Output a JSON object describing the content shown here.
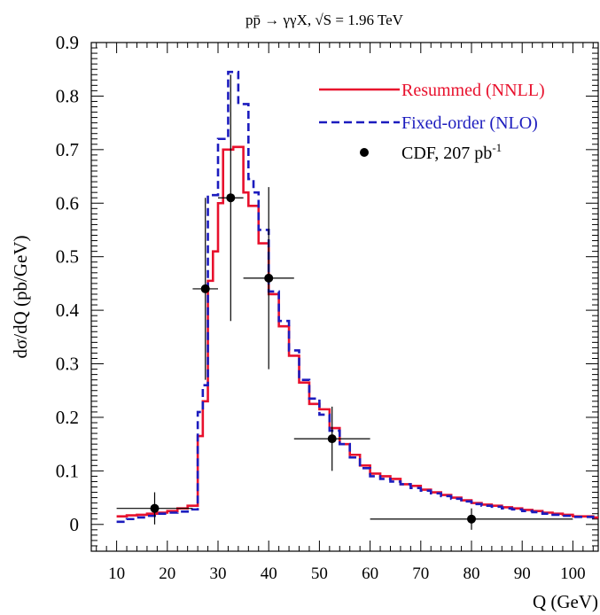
{
  "chart_data": {
    "type": "line",
    "title": "pp̄ → γγX, √S = 1.96 TeV",
    "xlabel": "Q (GeV)",
    "ylabel": "dσ/dQ (pb/GeV)",
    "xlim": [
      5,
      105
    ],
    "ylim": [
      -0.05,
      0.9
    ],
    "xticks": [
      10,
      20,
      30,
      40,
      50,
      60,
      70,
      80,
      90,
      100
    ],
    "xtick_labels": [
      "10",
      "20",
      "30",
      "40",
      "50",
      "60",
      "70",
      "80",
      "90",
      "100"
    ],
    "yticks": [
      0,
      0.1,
      0.2,
      0.3,
      0.4,
      0.5,
      0.6,
      0.7,
      0.8,
      0.9
    ],
    "ytick_labels": [
      "0",
      "0.1",
      "0.2",
      "0.3",
      "0.4",
      "0.5",
      "0.6",
      "0.7",
      "0.8",
      "0.9"
    ],
    "grid": false,
    "legend_position": "top-right",
    "bin_edges": [
      10,
      12,
      14,
      16,
      18,
      20,
      22,
      24,
      26,
      27,
      28,
      29,
      30,
      31,
      32,
      33,
      34,
      35,
      36,
      37,
      38,
      39,
      40,
      41,
      42,
      43,
      44,
      45,
      46,
      47,
      48,
      49,
      50,
      51,
      52,
      53,
      54,
      55,
      56,
      57,
      58,
      59,
      60,
      62,
      64,
      66,
      68,
      70,
      72,
      74,
      76,
      78,
      80,
      82,
      84,
      86,
      88,
      90,
      92,
      94,
      96,
      98,
      100,
      102,
      104,
      105
    ],
    "series": [
      {
        "name": "Resummed (NNLL)",
        "color": "#e8112d",
        "style": "solid",
        "values": [
          0.015,
          0.017,
          0.018,
          0.02,
          0.022,
          0.025,
          0.03,
          0.035,
          0.165,
          0.23,
          0.455,
          0.51,
          0.6,
          0.7,
          0.7,
          0.705,
          0.705,
          0.62,
          0.595,
          0.595,
          0.525,
          0.525,
          0.43,
          0.43,
          0.37,
          0.37,
          0.315,
          0.315,
          0.265,
          0.265,
          0.225,
          0.225,
          0.215,
          0.215,
          0.18,
          0.18,
          0.15,
          0.15,
          0.13,
          0.13,
          0.11,
          0.11,
          0.095,
          0.09,
          0.085,
          0.075,
          0.072,
          0.065,
          0.06,
          0.055,
          0.05,
          0.045,
          0.04,
          0.037,
          0.035,
          0.032,
          0.03,
          0.027,
          0.025,
          0.022,
          0.02,
          0.018,
          0.015,
          0.015,
          0.013
        ]
      },
      {
        "name": "Fixed-order (NLO)",
        "color": "#1c1cbe",
        "style": "dashed",
        "values": [
          0.005,
          0.01,
          0.013,
          0.016,
          0.02,
          0.022,
          0.024,
          0.028,
          0.21,
          0.26,
          0.615,
          0.615,
          0.72,
          0.72,
          0.845,
          0.845,
          0.785,
          0.785,
          0.645,
          0.62,
          0.55,
          0.55,
          0.435,
          0.435,
          0.38,
          0.38,
          0.325,
          0.325,
          0.27,
          0.27,
          0.235,
          0.235,
          0.205,
          0.205,
          0.175,
          0.175,
          0.15,
          0.15,
          0.125,
          0.125,
          0.105,
          0.105,
          0.09,
          0.085,
          0.08,
          0.075,
          0.068,
          0.063,
          0.058,
          0.053,
          0.048,
          0.043,
          0.038,
          0.035,
          0.033,
          0.03,
          0.028,
          0.025,
          0.023,
          0.02,
          0.018,
          0.016,
          0.014,
          0.014,
          0.013
        ]
      }
    ],
    "data_points": {
      "name": "CDF, 207 pb⁻¹",
      "color": "#000000",
      "points": [
        {
          "x": 17.5,
          "y": 0.03,
          "xlo": 10,
          "xhi": 25,
          "ylo": 0.0,
          "yhi": 0.06
        },
        {
          "x": 27.5,
          "y": 0.44,
          "xlo": 25,
          "xhi": 30,
          "ylo": 0.27,
          "yhi": 0.61
        },
        {
          "x": 32.5,
          "y": 0.61,
          "xlo": 30,
          "xhi": 35,
          "ylo": 0.38,
          "yhi": 0.84
        },
        {
          "x": 40.0,
          "y": 0.46,
          "xlo": 35,
          "xhi": 45,
          "ylo": 0.29,
          "yhi": 0.63
        },
        {
          "x": 52.5,
          "y": 0.16,
          "xlo": 45,
          "xhi": 60,
          "ylo": 0.1,
          "yhi": 0.22
        },
        {
          "x": 80.0,
          "y": 0.01,
          "xlo": 60,
          "xhi": 100,
          "ylo": -0.01,
          "yhi": 0.03
        }
      ]
    },
    "legend": {
      "resummed": "Resummed (NNLL)",
      "fixed": "Fixed-order (NLO)",
      "cdf_text": "CDF, 207 pb",
      "cdf_sup": "-1"
    }
  }
}
